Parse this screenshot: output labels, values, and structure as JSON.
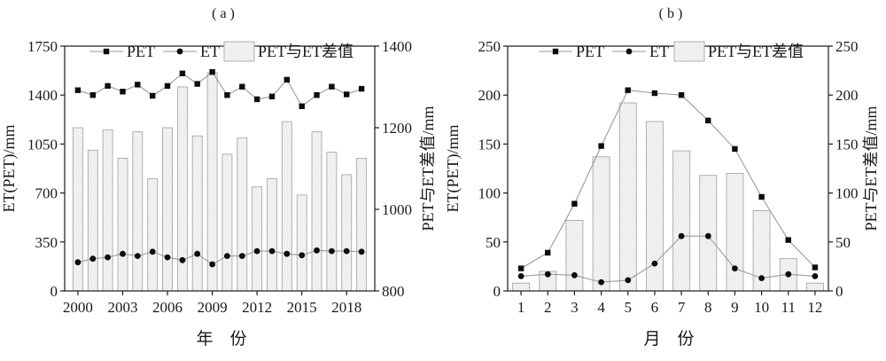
{
  "colors": {
    "marker": "#0d0d0d",
    "line": "#9a9a9a",
    "bar_fill_bg": "#fdfdfd",
    "bar_hatch": "#dcdcdc",
    "bar_border": "#a8a8a8",
    "axis": "#1a1a1a",
    "text": "#1a1a1a",
    "background": "#ffffff"
  },
  "chart_data": [
    {
      "type": "line+bar",
      "panel_label": "( a )",
      "xlabel": "年　份",
      "ylabel_left": "ET(PET)/mm",
      "ylabel_right": "PET与ET差值/mm",
      "legend_position": "top-inside",
      "grid": false,
      "x_categories": [
        "2000",
        "2001",
        "2002",
        "2003",
        "2004",
        "2005",
        "2006",
        "2007",
        "2008",
        "2009",
        "2010",
        "2011",
        "2012",
        "2013",
        "2014",
        "2015",
        "2016",
        "2017",
        "2018",
        "2019"
      ],
      "x_tick_labels": [
        "2000",
        "2003",
        "2006",
        "2009",
        "2012",
        "2015",
        "2018"
      ],
      "left_axis": {
        "min": 0,
        "max": 1750,
        "ticks": [
          "0",
          "350",
          "700",
          "1050",
          "1400",
          "1750"
        ]
      },
      "right_axis": {
        "min": 800,
        "max": 1400,
        "ticks": [
          "800",
          "1000",
          "1200",
          "1400"
        ]
      },
      "series": [
        {
          "name": "PET",
          "type": "line",
          "marker": "square",
          "axis": "left",
          "values": [
            1435,
            1400,
            1465,
            1425,
            1475,
            1395,
            1465,
            1555,
            1480,
            1565,
            1400,
            1460,
            1370,
            1390,
            1510,
            1320,
            1400,
            1460,
            1405,
            1445
          ]
        },
        {
          "name": "ET",
          "type": "line",
          "marker": "circle",
          "axis": "left",
          "values": [
            205,
            230,
            240,
            265,
            250,
            280,
            240,
            220,
            265,
            190,
            250,
            250,
            285,
            285,
            265,
            255,
            290,
            285,
            285,
            280
          ]
        },
        {
          "name": "PET与ET差值",
          "type": "bar",
          "axis": "right",
          "values": [
            1200,
            1145,
            1195,
            1125,
            1190,
            1075,
            1200,
            1300,
            1180,
            1335,
            1135,
            1175,
            1055,
            1075,
            1215,
            1035,
            1190,
            1140,
            1085,
            1125
          ]
        }
      ]
    },
    {
      "type": "line+bar",
      "panel_label": "( b )",
      "xlabel": "月　份",
      "ylabel_left": "ET(PET)/mm",
      "ylabel_right": "PET与ET差值/mm",
      "legend_position": "top-inside",
      "grid": false,
      "x_categories": [
        "1",
        "2",
        "3",
        "4",
        "5",
        "6",
        "7",
        "8",
        "9",
        "10",
        "11",
        "12"
      ],
      "x_tick_labels": [
        "1",
        "2",
        "3",
        "4",
        "5",
        "6",
        "7",
        "8",
        "9",
        "10",
        "11",
        "12"
      ],
      "left_axis": {
        "min": 0,
        "max": 250,
        "ticks": [
          "0",
          "50",
          "100",
          "150",
          "200",
          "250"
        ]
      },
      "right_axis": {
        "min": 0,
        "max": 250,
        "ticks": [
          "0",
          "50",
          "100",
          "150",
          "200",
          "250"
        ]
      },
      "series": [
        {
          "name": "PET",
          "type": "line",
          "marker": "square",
          "axis": "left",
          "values": [
            23,
            39,
            89,
            148,
            205,
            202,
            200,
            174,
            145,
            96,
            52,
            24
          ]
        },
        {
          "name": "ET",
          "type": "line",
          "marker": "circle",
          "axis": "left",
          "values": [
            15,
            17,
            16,
            9,
            11,
            28,
            56,
            56,
            23,
            13,
            17,
            15
          ]
        },
        {
          "name": "PET与ET差值",
          "type": "bar",
          "axis": "right",
          "values": [
            8,
            20,
            72,
            137,
            192,
            173,
            143,
            118,
            120,
            82,
            33,
            8
          ]
        }
      ]
    }
  ]
}
